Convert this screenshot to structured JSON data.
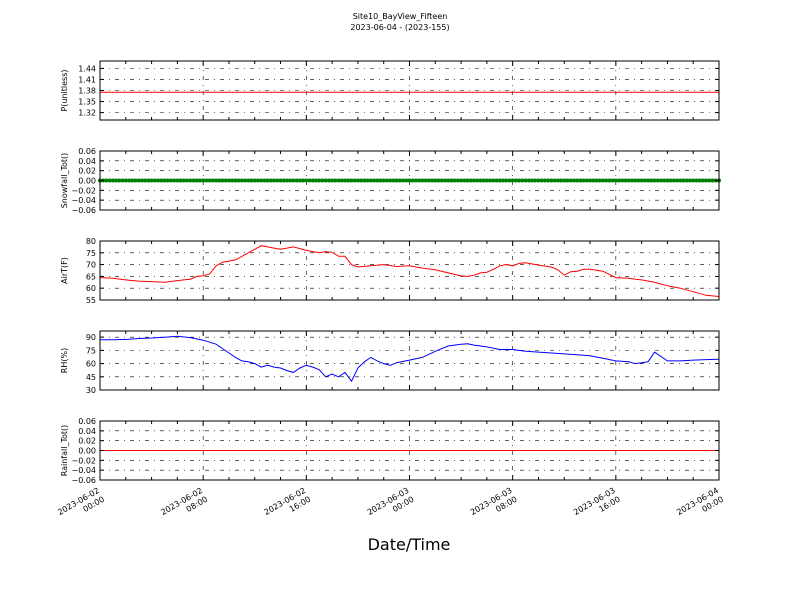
{
  "figure": {
    "title": "Site10_BayView_Fifteen",
    "subtitle": "2023-06-04 - (2023-155)",
    "xlabel": "Date/Time"
  },
  "chart_data": [
    {
      "type": "line",
      "ylabel": "P(unitless)",
      "ylim": [
        1.3,
        1.46
      ],
      "yticks": [
        1.32,
        1.35,
        1.38,
        1.41,
        1.44
      ],
      "ytick_labels": [
        "1.32",
        "1.35",
        "1.38",
        "1.41",
        "1.44"
      ],
      "grid": true,
      "series": [
        {
          "color": "#ff0000",
          "marker": "none",
          "x": [
            0,
            48
          ],
          "y": [
            1.375,
            1.375
          ]
        }
      ]
    },
    {
      "type": "line",
      "ylabel": "Snowfall_Tot()",
      "ylim": [
        -0.06,
        0.06
      ],
      "yticks": [
        -0.06,
        -0.04,
        -0.02,
        0.0,
        0.02,
        0.04,
        0.06
      ],
      "ytick_labels": [
        "−0.06",
        "−0.04",
        "−0.02",
        "0.00",
        "0.02",
        "0.04",
        "0.06"
      ],
      "grid": true,
      "series": [
        {
          "color": "#008000",
          "marker": "dot",
          "marker_every_hours": 0.25,
          "x": [
            0,
            48
          ],
          "y": [
            0,
            0
          ]
        }
      ]
    },
    {
      "type": "line",
      "ylabel": "AirT(F)",
      "ylim": [
        55,
        80
      ],
      "yticks": [
        55,
        60,
        65,
        70,
        75,
        80
      ],
      "ytick_labels": [
        "55",
        "60",
        "65",
        "70",
        "75",
        "80"
      ],
      "grid": true,
      "series": [
        {
          "color": "#ff0000",
          "marker": "none",
          "x": [
            0,
            1,
            2,
            3,
            4,
            5,
            6,
            6.5,
            7,
            7.5,
            8,
            8.5,
            9,
            9.5,
            10,
            10.5,
            11,
            11.5,
            12,
            12.5,
            13,
            13.5,
            14,
            14.5,
            15,
            15.5,
            16,
            16.5,
            17,
            17.5,
            18,
            18.5,
            19,
            19.5,
            20,
            21,
            22,
            23,
            24,
            25,
            26,
            27,
            28,
            28.5,
            29,
            29.5,
            30,
            30.5,
            31,
            31.5,
            32,
            32.5,
            33,
            34,
            35,
            35.5,
            36,
            36.5,
            37,
            37.5,
            38,
            39,
            40,
            41,
            42,
            43,
            44,
            45,
            46,
            47,
            48
          ],
          "y": [
            64.5,
            64.2,
            63.5,
            63,
            62.8,
            62.5,
            63.2,
            63.5,
            63.8,
            65,
            65.2,
            66,
            69.5,
            71,
            71.5,
            72,
            73.5,
            75,
            76.5,
            78,
            77.5,
            77,
            76.5,
            77,
            77.5,
            76.8,
            76,
            75.5,
            75,
            75.5,
            75.2,
            73.5,
            73.5,
            70,
            69,
            69.5,
            70,
            69.2,
            69.5,
            68.5,
            67.8,
            66.5,
            65.2,
            65,
            65.5,
            66.5,
            66.8,
            68,
            69.5,
            70,
            69.5,
            70.5,
            70.8,
            69.8,
            69,
            67.8,
            65.5,
            67,
            67.2,
            68,
            68,
            67.2,
            64.5,
            64.2,
            63.5,
            62.5,
            61,
            60,
            58.5,
            57,
            56.5
          ]
        }
      ]
    },
    {
      "type": "line",
      "ylabel": "RH(%)",
      "ylim": [
        30,
        97
      ],
      "yticks": [
        30,
        45,
        60,
        75,
        90
      ],
      "ytick_labels": [
        "30",
        "45",
        "60",
        "75",
        "90"
      ],
      "grid": true,
      "series": [
        {
          "color": "#0000ff",
          "marker": "none",
          "x": [
            0,
            1,
            2,
            3,
            4,
            5,
            6,
            7,
            8,
            9,
            9.5,
            10,
            10.5,
            11,
            11.5,
            12,
            12.5,
            13,
            13.5,
            14,
            14.5,
            15,
            15.5,
            16,
            16.5,
            17,
            17.5,
            18,
            18.5,
            19,
            19.5,
            20,
            20.5,
            21,
            21.5,
            22,
            22.5,
            23,
            24,
            25,
            26,
            27,
            28,
            28.5,
            29,
            30,
            31,
            32,
            33,
            34,
            35,
            36,
            37,
            38,
            39,
            40,
            41,
            41.5,
            42,
            42.5,
            43,
            44,
            45,
            46,
            47,
            48
          ],
          "y": [
            87,
            87,
            87.5,
            88.5,
            89,
            90,
            91,
            89.5,
            86.5,
            82,
            77,
            72,
            67,
            63,
            62,
            60,
            56,
            58,
            56,
            55,
            52,
            50,
            55,
            58,
            56,
            53,
            45,
            48,
            45,
            50,
            40,
            55,
            62,
            67,
            63,
            60,
            58,
            61,
            64,
            67,
            74,
            80,
            82,
            82.5,
            81,
            79,
            76,
            76,
            74,
            73,
            72,
            71,
            70,
            69,
            66,
            63,
            62,
            60,
            61,
            62,
            73,
            63,
            63,
            64,
            64.5,
            65
          ]
        }
      ]
    },
    {
      "type": "line",
      "ylabel": "Rainfall_Tot()",
      "ylim": [
        -0.06,
        0.06
      ],
      "yticks": [
        -0.06,
        -0.04,
        -0.02,
        0.0,
        0.02,
        0.04,
        0.06
      ],
      "ytick_labels": [
        "−0.06",
        "−0.04",
        "−0.02",
        "0.00",
        "0.02",
        "0.04",
        "0.06"
      ],
      "grid": true,
      "series": [
        {
          "color": "#ff0000",
          "marker": "none",
          "x": [
            0,
            48
          ],
          "y": [
            0,
            0
          ]
        }
      ]
    }
  ],
  "x_axis": {
    "xlim_hours": [
      0,
      48
    ],
    "ticks_hours": [
      0,
      8,
      16,
      24,
      32,
      40,
      48
    ],
    "tick_labels": [
      [
        "2023-06-02",
        "00:00"
      ],
      [
        "2023-06-02",
        "08:00"
      ],
      [
        "2023-06-02",
        "16:00"
      ],
      [
        "2023-06-03",
        "00:00"
      ],
      [
        "2023-06-03",
        "08:00"
      ],
      [
        "2023-06-03",
        "16:00"
      ],
      [
        "2023-06-04",
        "00:00"
      ]
    ]
  }
}
